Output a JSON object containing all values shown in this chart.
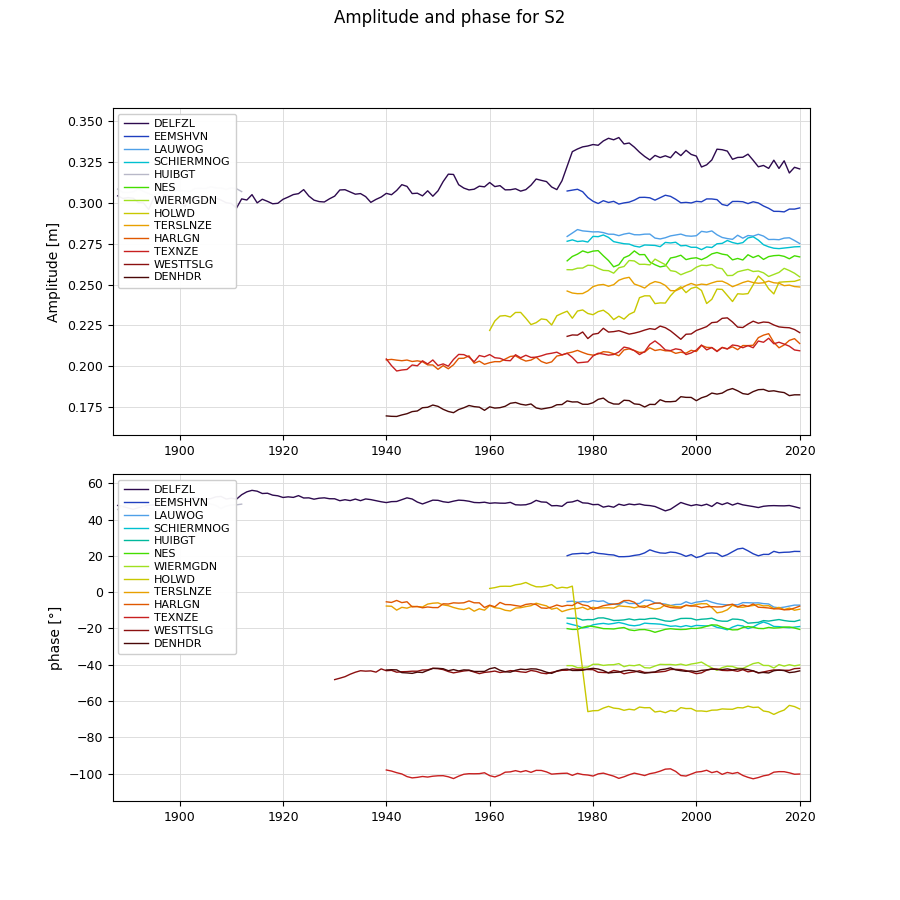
{
  "title": "Amplitude and phase for S2",
  "stations": [
    "DELFZL",
    "EEMSHVN",
    "LAUWOG",
    "SCHIERMNOG",
    "HUIBGT",
    "NES",
    "WIERMGDN",
    "HOLWD",
    "TERSLNZE",
    "HARLGN",
    "TEXNZE",
    "WESTTSLG",
    "DENHDR"
  ],
  "colors": {
    "DELFZL": "#2d0a4e",
    "EEMSHVN": "#1f3fbf",
    "LAUWOG": "#4fa0e8",
    "SCHIERMNOG": "#00c0d0",
    "HUIBGT": "#00b89c",
    "NES": "#44dd00",
    "WIERMGDN": "#a0e020",
    "HOLWD": "#c8c800",
    "TERSLNZE": "#e8a000",
    "HARLGN": "#e05800",
    "TEXNZE": "#c82020",
    "WESTTSLG": "#8b1010",
    "DENHDR": "#4a0808"
  },
  "grey_color": "#b8b8c8",
  "amp_ylabel": "Amplitude [m]",
  "amp_ylim": [
    0.158,
    0.358
  ],
  "amp_yticks": [
    0.175,
    0.2,
    0.225,
    0.25,
    0.275,
    0.3,
    0.325,
    0.35
  ],
  "phase_ylabel": "phase [°]",
  "phase_ylim": [
    -115,
    65
  ],
  "phase_yticks": [
    -100,
    -80,
    -60,
    -40,
    -20,
    0,
    20,
    40,
    60
  ],
  "xlim": [
    1887,
    2022
  ],
  "xticks": [
    1900,
    1920,
    1940,
    1960,
    1980,
    2000,
    2020
  ]
}
